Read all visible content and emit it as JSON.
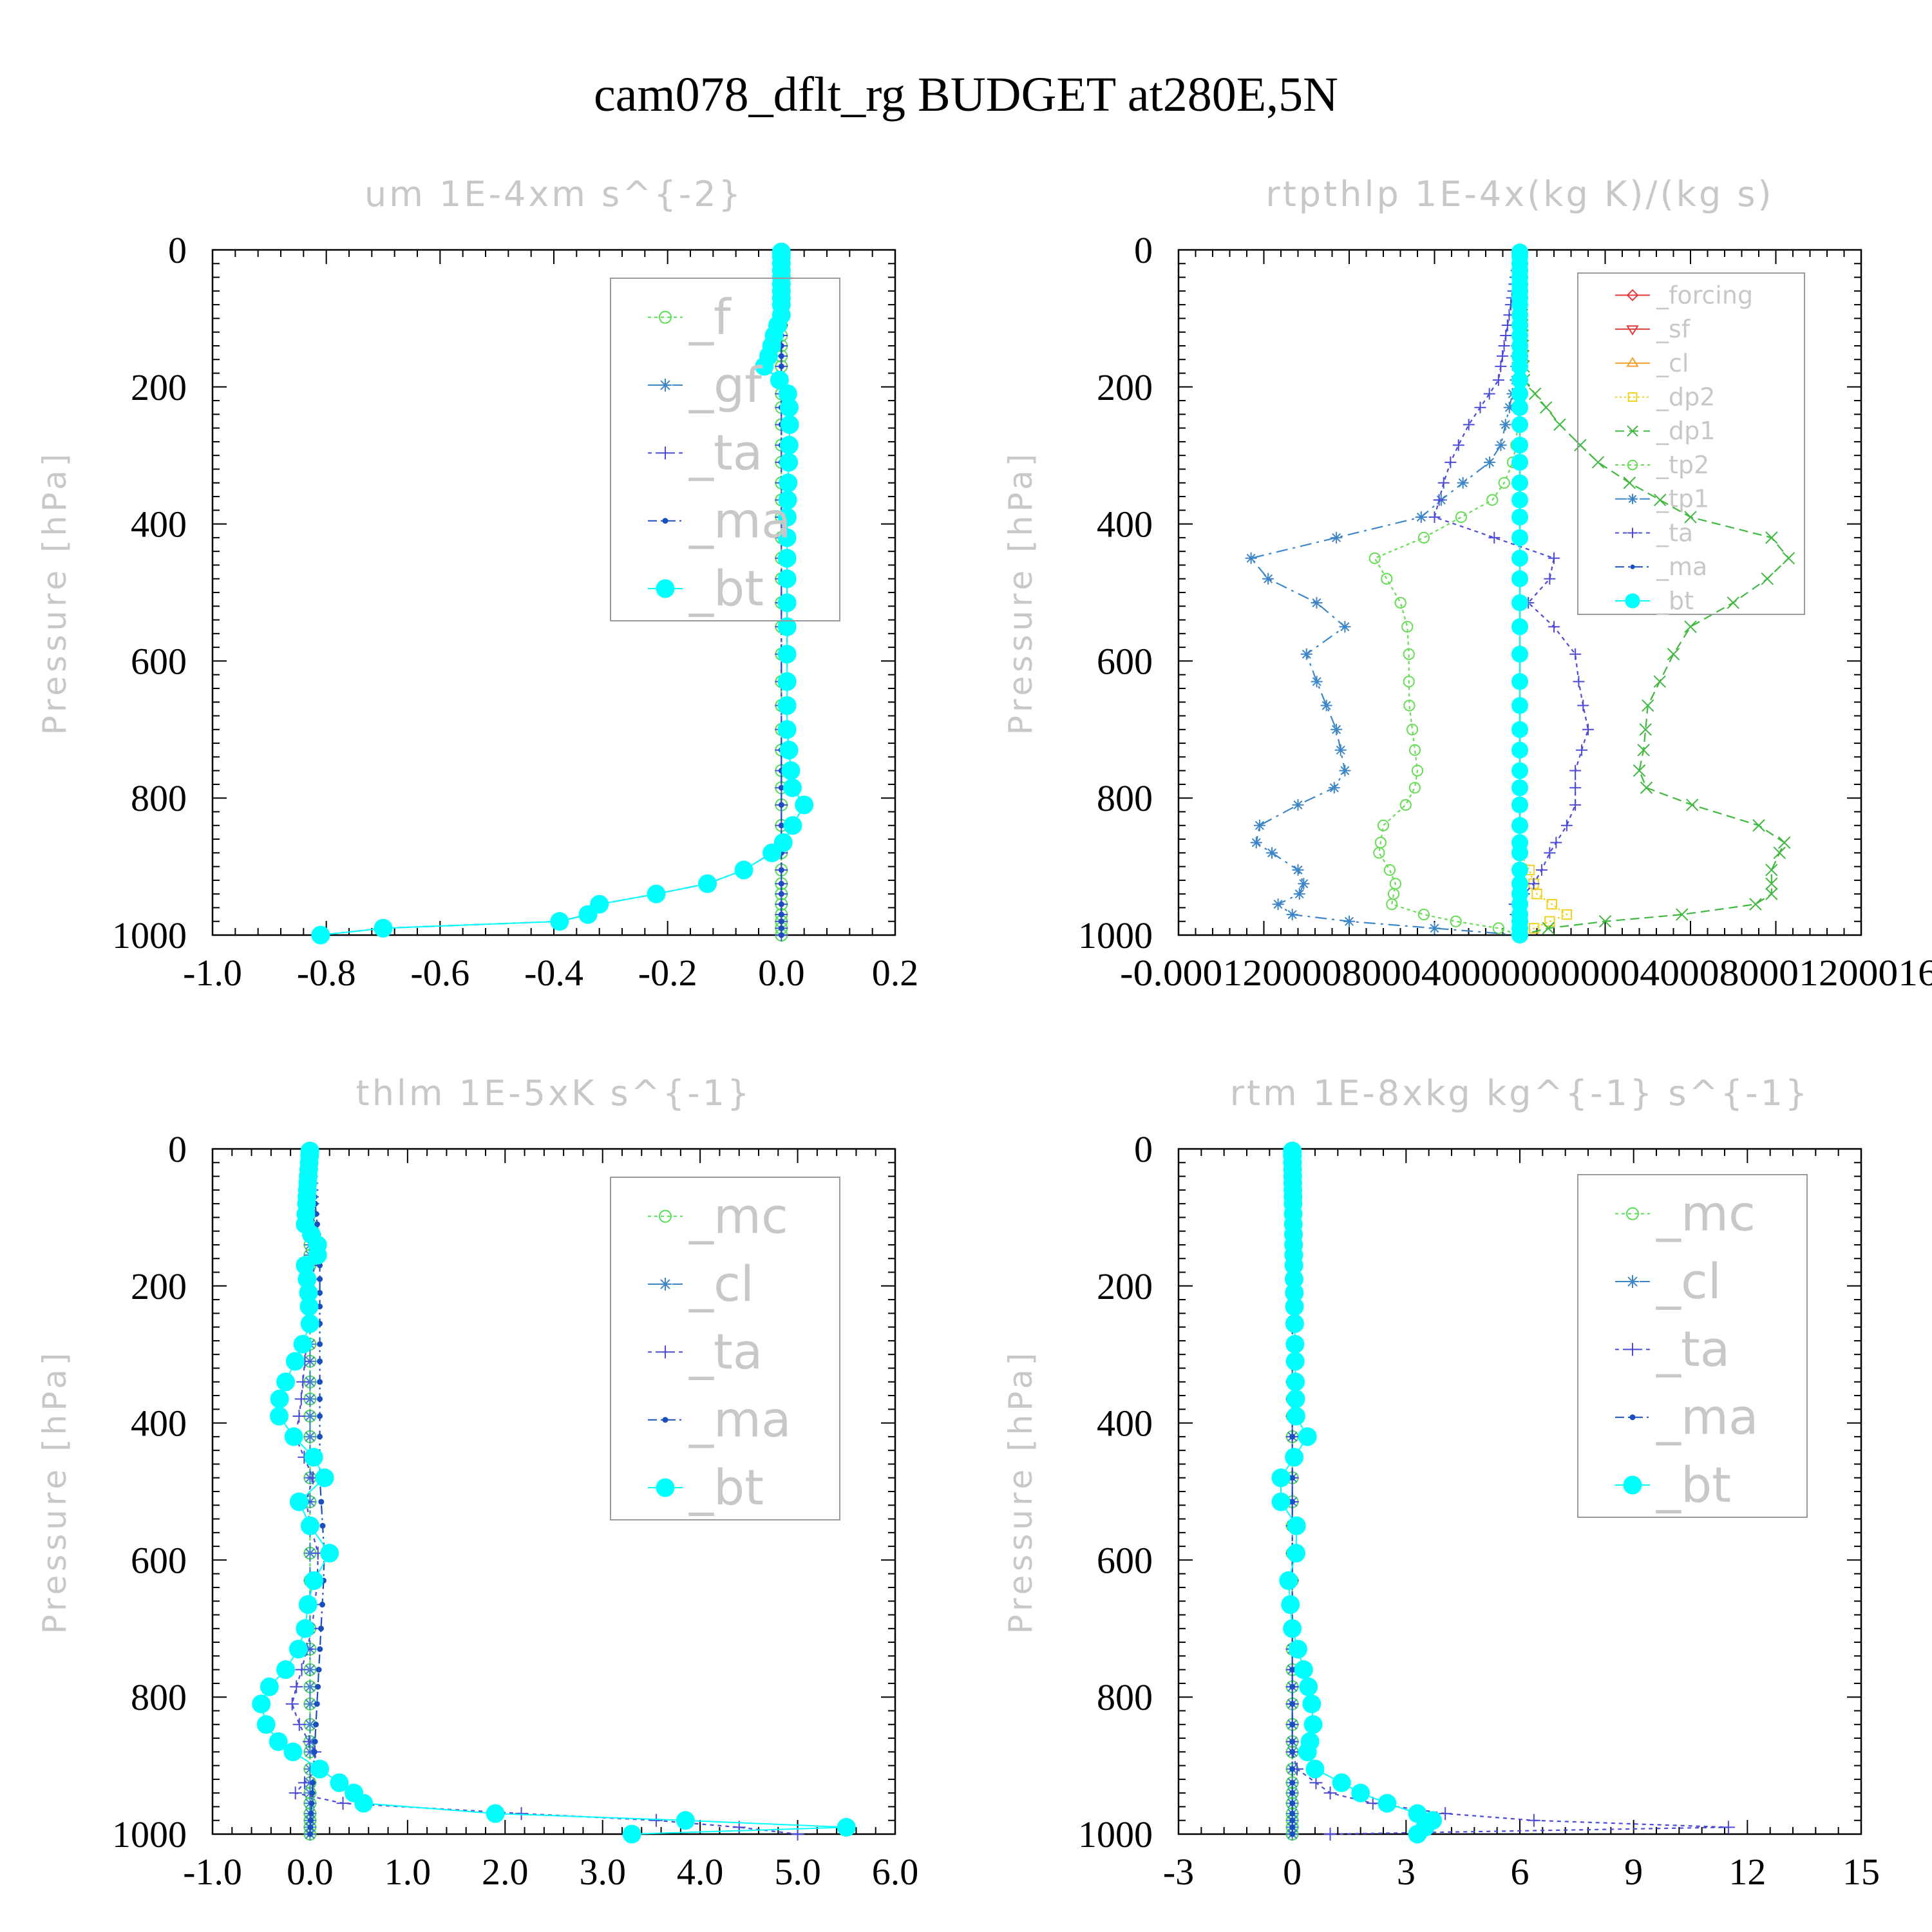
{
  "figure": {
    "title": "cam078_dflt_rg  BUDGET at280E,5N"
  },
  "chart_data": [
    {
      "type": "line",
      "title": "um  1E-4xm s^{-2}",
      "ylabel": "Pressure [hPa]",
      "xlabel": "",
      "xlim": [
        -1.0,
        0.2
      ],
      "ylim": [
        1000,
        0
      ],
      "xticks": [
        "-1.0",
        "-0.8",
        "-0.6",
        "-0.4",
        "-0.2",
        "0.0",
        "0.2"
      ],
      "xtick_values": [
        -1.0,
        -0.8,
        -0.6,
        -0.4,
        -0.2,
        0.0,
        0.2
      ],
      "yticks": [
        "0",
        "200",
        "400",
        "600",
        "800",
        "1000"
      ],
      "legend_size": "large",
      "series": [
        {
          "name": "_f",
          "color": "#55dd55",
          "marker": "circle",
          "dash": "5,5",
          "shape": "zero"
        },
        {
          "name": "_gf",
          "color": "#3c86c8",
          "marker": "asterisk",
          "dash": "18,8,4,8",
          "shape": "um_gf"
        },
        {
          "name": "_ta",
          "color": "#4b4bd8",
          "marker": "plus",
          "dash": "6,6",
          "shape": "um_ta"
        },
        {
          "name": "_ma",
          "color": "#1a4fc0",
          "marker": "dot",
          "dash": "14,6,3,6",
          "shape": "zero"
        },
        {
          "name": "_bt",
          "color": "#00ffff",
          "marker": "bigdot",
          "dash": "",
          "shape": "um_bt"
        }
      ]
    },
    {
      "type": "line",
      "title": "rtpthlp  1E-4x(kg K)/(kg s)",
      "ylabel": "Pressure [hPa]",
      "xlabel": "",
      "xlim": [
        -0.00016,
        0.00016
      ],
      "ylim": [
        1000,
        0
      ],
      "xticks": [
        "-0.00016",
        "-0.00012",
        "-0.00008",
        "-0.00004",
        "0.00000",
        "0.00004",
        "0.00008",
        "0.00012",
        "0.00016"
      ],
      "xtick_values": [
        -0.00016,
        -0.00012,
        -8e-05,
        -4e-05,
        0.0,
        4e-05,
        8e-05,
        0.00012,
        0.00016
      ],
      "xtick_visible": [
        "-0.000120",
        "0008",
        "0004",
        "000000",
        "00004",
        "0008",
        "00012",
        "00016"
      ],
      "yticks": [
        "0",
        "200",
        "400",
        "600",
        "800",
        "1000"
      ],
      "legend_size": "small",
      "series": [
        {
          "name": "_forcing",
          "color": "#e03c3c",
          "marker": "diamond",
          "dash": "",
          "shape": "zero"
        },
        {
          "name": "_sf",
          "color": "#e03c3c",
          "marker": "tri-down",
          "dash": "",
          "shape": "zero"
        },
        {
          "name": "_cl",
          "color": "#f0a030",
          "marker": "tri-up",
          "dash": "",
          "shape": "zero"
        },
        {
          "name": "_dp2",
          "color": "#f0d020",
          "marker": "square",
          "dash": "3,4",
          "shape": "rt_dp2"
        },
        {
          "name": "_dp1",
          "color": "#3fb83f",
          "marker": "x",
          "dash": "14,8",
          "shape": "rt_dp1"
        },
        {
          "name": "_tp2",
          "color": "#66dd55",
          "marker": "circle",
          "dash": "5,5",
          "shape": "rt_tp2"
        },
        {
          "name": "_tp1",
          "color": "#3c86c8",
          "marker": "asterisk",
          "dash": "18,8,4,8",
          "shape": "rt_tp1"
        },
        {
          "name": "_ta",
          "color": "#4b4bd8",
          "marker": "plus",
          "dash": "6,6",
          "shape": "rt_ta"
        },
        {
          "name": "_ma",
          "color": "#1a4fc0",
          "marker": "dot",
          "dash": "14,6,3,6",
          "shape": "zero"
        },
        {
          "name": "_bt",
          "color": "#00ffff",
          "marker": "bigdot",
          "dash": "",
          "shape": "zero"
        }
      ]
    },
    {
      "type": "line",
      "title": "thlm  1E-5xK s^{-1}",
      "ylabel": "Pressure [hPa]",
      "xlabel": "",
      "xlim": [
        -1.0,
        6.0
      ],
      "ylim": [
        1000,
        0
      ],
      "xticks": [
        "-1.0",
        "0.0",
        "1.0",
        "2.0",
        "3.0",
        "4.0",
        "5.0",
        "6.0"
      ],
      "xtick_values": [
        -1,
        0,
        1,
        2,
        3,
        4,
        5,
        6
      ],
      "yticks": [
        "0",
        "200",
        "400",
        "600",
        "800",
        "1000"
      ],
      "legend_size": "large",
      "series": [
        {
          "name": "_mc",
          "color": "#55dd55",
          "marker": "circle",
          "dash": "5,5",
          "shape": "zero"
        },
        {
          "name": "_cl",
          "color": "#3c86c8",
          "marker": "asterisk",
          "dash": "18,8,4,8",
          "shape": "zero"
        },
        {
          "name": "_ta",
          "color": "#4b4bd8",
          "marker": "plus",
          "dash": "6,6",
          "shape": "th_ta"
        },
        {
          "name": "_ma",
          "color": "#1a4fc0",
          "marker": "dot",
          "dash": "14,6,3,6",
          "shape": "th_ma"
        },
        {
          "name": "_bt",
          "color": "#00ffff",
          "marker": "bigdot",
          "dash": "",
          "shape": "th_bt"
        }
      ]
    },
    {
      "type": "line",
      "title": "rtm  1E-8xkg kg^{-1} s^{-1}",
      "ylabel": "Pressure [hPa]",
      "xlabel": "",
      "xlim": [
        -3,
        15
      ],
      "ylim": [
        1000,
        0
      ],
      "xticks": [
        "-3",
        "0",
        "3",
        "6",
        "9",
        "12",
        "15"
      ],
      "xtick_values": [
        -3,
        0,
        3,
        6,
        9,
        12,
        15
      ],
      "yticks": [
        "0",
        "200",
        "400",
        "600",
        "800",
        "1000"
      ],
      "legend_size": "large",
      "series": [
        {
          "name": "_mc",
          "color": "#55dd55",
          "marker": "circle",
          "dash": "5,5",
          "shape": "zero"
        },
        {
          "name": "_cl",
          "color": "#3c86c8",
          "marker": "asterisk",
          "dash": "18,8,4,8",
          "shape": "zero"
        },
        {
          "name": "_ta",
          "color": "#4b4bd8",
          "marker": "plus",
          "dash": "6,6",
          "shape": "rq_ta"
        },
        {
          "name": "_ma",
          "color": "#1a4fc0",
          "marker": "dot",
          "dash": "14,6,3,6",
          "shape": "zero"
        },
        {
          "name": "_bt",
          "color": "#00ffff",
          "marker": "bigdot",
          "dash": "",
          "shape": "rq_bt"
        }
      ]
    }
  ]
}
